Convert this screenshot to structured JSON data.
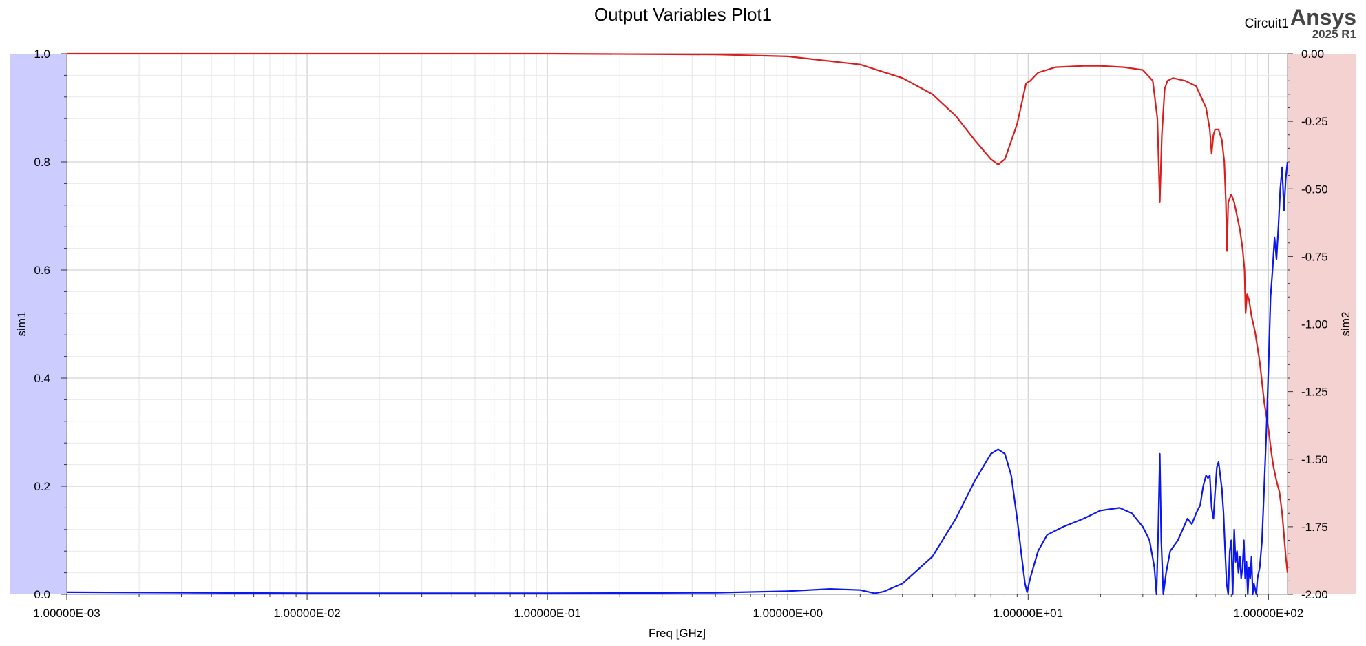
{
  "header": {
    "title": "Output Variables Plot1",
    "design_name": "Circuit1",
    "brand": "Ansys",
    "version": "2025 R1"
  },
  "chart_data": {
    "type": "line",
    "title": "Output Variables Plot1",
    "xlabel": "Freq [GHz]",
    "ylabel": "sim1",
    "y2label": "sim2",
    "xscale": "log",
    "xlim": [
      0.001,
      120
    ],
    "ylim": [
      0,
      1.0
    ],
    "y2lim": [
      -2.0,
      0.0
    ],
    "grid": true,
    "x_ticks": [
      "1.00000E-03",
      "1.00000E-02",
      "1.00000E-01",
      "1.00000E+00",
      "1.00000E+01",
      "1.00000E+02"
    ],
    "y_ticks": [
      "0.0",
      "0.2",
      "0.4",
      "0.6",
      "0.8",
      "1.0"
    ],
    "y2_ticks": [
      "0.00",
      "-0.25",
      "-0.50",
      "-0.75",
      "-1.00",
      "-1.25",
      "-1.50",
      "-1.75",
      "-2.00"
    ],
    "left_axis_band_color": "#ccccff",
    "right_axis_band_color": "#f5d2d2",
    "series": [
      {
        "axis": "y2",
        "color": "#dd1c1c",
        "x": [
          0.001,
          0.1,
          0.5,
          1.0,
          2.0,
          3.0,
          4.0,
          5.0,
          6.0,
          7.0,
          7.5,
          8.0,
          9.0,
          9.8,
          10.2,
          11,
          13,
          17,
          20,
          25,
          30,
          33,
          34.5,
          35.3,
          36,
          37,
          38,
          40,
          45,
          50,
          55,
          57,
          58,
          59,
          60,
          62,
          64,
          65.5,
          66.5,
          67.2,
          68,
          70,
          72,
          74,
          76,
          78,
          79.5,
          80.3,
          81.5,
          83,
          85,
          88,
          92,
          96,
          100,
          103,
          105,
          108,
          111,
          114,
          116,
          118,
          120
        ],
        "y": [
          0.0,
          0.0,
          -0.003,
          -0.01,
          -0.04,
          -0.09,
          -0.15,
          -0.23,
          -0.32,
          -0.39,
          -0.41,
          -0.39,
          -0.26,
          -0.11,
          -0.1,
          -0.07,
          -0.05,
          -0.045,
          -0.045,
          -0.05,
          -0.06,
          -0.1,
          -0.24,
          -0.55,
          -0.3,
          -0.13,
          -0.1,
          -0.09,
          -0.1,
          -0.12,
          -0.2,
          -0.28,
          -0.37,
          -0.3,
          -0.28,
          -0.28,
          -0.32,
          -0.4,
          -0.55,
          -0.73,
          -0.55,
          -0.52,
          -0.55,
          -0.6,
          -0.65,
          -0.72,
          -0.8,
          -0.96,
          -0.89,
          -0.91,
          -0.97,
          -1.03,
          -1.14,
          -1.29,
          -1.39,
          -1.48,
          -1.53,
          -1.58,
          -1.62,
          -1.7,
          -1.78,
          -1.86,
          -1.92
        ]
      },
      {
        "axis": "y1",
        "color": "#0b17f0",
        "x": [
          0.001,
          0.01,
          0.1,
          0.5,
          1.0,
          1.5,
          2.0,
          2.3,
          2.5,
          3.0,
          4.0,
          5.0,
          6.0,
          7.0,
          7.5,
          8.0,
          8.5,
          9.0,
          9.4,
          9.7,
          9.9,
          10.2,
          11,
          12,
          14,
          17,
          20,
          24,
          27,
          30,
          32,
          33.5,
          34.2,
          34.8,
          35.3,
          35.8,
          36.5,
          37.5,
          39,
          42,
          46,
          48,
          50,
          52,
          53.5,
          55,
          56,
          57,
          58,
          59,
          60,
          61,
          62,
          63,
          64,
          65,
          66,
          67,
          68,
          69,
          70,
          71,
          72,
          73,
          74,
          75,
          76,
          77,
          78,
          79,
          80,
          81,
          82,
          83,
          84,
          85,
          86,
          87,
          88,
          89,
          90,
          92,
          94,
          96,
          98,
          100,
          102,
          104,
          106,
          108,
          110,
          112,
          114,
          116,
          118,
          120
        ],
        "y": [
          0.004,
          0.002,
          0.002,
          0.003,
          0.006,
          0.01,
          0.008,
          0.002,
          0.005,
          0.02,
          0.07,
          0.14,
          0.21,
          0.26,
          0.268,
          0.26,
          0.22,
          0.14,
          0.07,
          0.02,
          0.004,
          0.03,
          0.08,
          0.11,
          0.125,
          0.14,
          0.155,
          0.16,
          0.15,
          0.125,
          0.1,
          0.05,
          0.0,
          0.12,
          0.26,
          0.1,
          0.0,
          0.04,
          0.08,
          0.1,
          0.14,
          0.13,
          0.15,
          0.165,
          0.2,
          0.22,
          0.215,
          0.22,
          0.16,
          0.14,
          0.19,
          0.235,
          0.245,
          0.22,
          0.195,
          0.15,
          0.08,
          0.02,
          0.0,
          0.08,
          0.1,
          0.0,
          0.12,
          0.06,
          0.08,
          0.04,
          0.07,
          0.03,
          0.05,
          0.1,
          0.03,
          0.06,
          0.0,
          0.05,
          0.03,
          0.07,
          0.0,
          0.02,
          0.01,
          0.0,
          0.03,
          0.05,
          0.1,
          0.2,
          0.3,
          0.42,
          0.55,
          0.6,
          0.66,
          0.62,
          0.68,
          0.75,
          0.79,
          0.71,
          0.77,
          0.8
        ]
      }
    ]
  }
}
